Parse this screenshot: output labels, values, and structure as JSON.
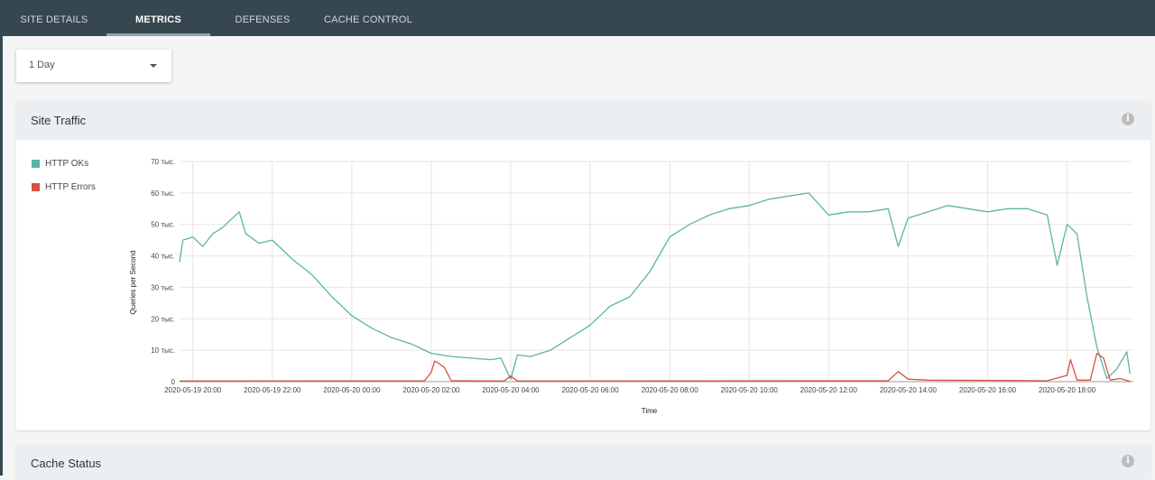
{
  "tabs": [
    {
      "label": "SITE DETAILS"
    },
    {
      "label": "METRICS"
    },
    {
      "label": "DEFENSES"
    },
    {
      "label": "CACHE CONTROL"
    }
  ],
  "active_tab": "METRICS",
  "range_select": {
    "value": "1 Day"
  },
  "cards": {
    "site_traffic": {
      "title": "Site Traffic"
    },
    "cache_status": {
      "title": "Cache Status"
    }
  },
  "info_glyph": "i",
  "colors": {
    "ok": "#5bb5a2",
    "errors": "#d9503f",
    "topbar": "#37474f"
  },
  "chart_data": {
    "type": "line",
    "title": "",
    "xlabel": "Time",
    "ylabel": "Queries per Second",
    "ylim": [
      0,
      70000
    ],
    "y_ticks": [
      "0",
      "10 тыс.",
      "20 тыс.",
      "30 тыс.",
      "40 тыс.",
      "50 тыс.",
      "60 тыс.",
      "70 тыс."
    ],
    "x_ticks": [
      "2020-05-19 20:00",
      "2020-05-19 22:00",
      "2020-05-20 00:00",
      "2020-05-20 02:00",
      "2020-05-20 04:00",
      "2020-05-20 06:00",
      "2020-05-20 08:00",
      "2020-05-20 10:00",
      "2020-05-20 12:00",
      "2020-05-20 14:00",
      "2020-05-20 16:00",
      "2020-05-20 18:00"
    ],
    "legend_position": "left",
    "grid": true,
    "series": [
      {
        "name": "HTTP OKs",
        "color": "#5bb5a2",
        "points": [
          [
            "2020-05-19 19:40",
            38000
          ],
          [
            "2020-05-19 19:45",
            45000
          ],
          [
            "2020-05-19 20:00",
            46000
          ],
          [
            "2020-05-19 20:15",
            43000
          ],
          [
            "2020-05-19 20:30",
            47000
          ],
          [
            "2020-05-19 20:45",
            49000
          ],
          [
            "2020-05-19 21:00",
            52000
          ],
          [
            "2020-05-19 21:10",
            54000
          ],
          [
            "2020-05-19 21:20",
            47000
          ],
          [
            "2020-05-19 21:40",
            44000
          ],
          [
            "2020-05-19 22:00",
            45000
          ],
          [
            "2020-05-19 22:15",
            42000
          ],
          [
            "2020-05-19 22:30",
            39000
          ],
          [
            "2020-05-19 23:00",
            34000
          ],
          [
            "2020-05-19 23:30",
            27000
          ],
          [
            "2020-05-20 00:00",
            21000
          ],
          [
            "2020-05-20 00:30",
            17000
          ],
          [
            "2020-05-20 01:00",
            14000
          ],
          [
            "2020-05-20 01:30",
            12000
          ],
          [
            "2020-05-20 02:00",
            9000
          ],
          [
            "2020-05-20 02:30",
            8000
          ],
          [
            "2020-05-20 03:00",
            7500
          ],
          [
            "2020-05-20 03:30",
            7000
          ],
          [
            "2020-05-20 03:45",
            7500
          ],
          [
            "2020-05-20 04:00",
            800
          ],
          [
            "2020-05-20 04:10",
            8500
          ],
          [
            "2020-05-20 04:30",
            8000
          ],
          [
            "2020-05-20 05:00",
            10000
          ],
          [
            "2020-05-20 05:30",
            14000
          ],
          [
            "2020-05-20 06:00",
            18000
          ],
          [
            "2020-05-20 06:30",
            24000
          ],
          [
            "2020-05-20 07:00",
            27000
          ],
          [
            "2020-05-20 07:30",
            35000
          ],
          [
            "2020-05-20 08:00",
            46000
          ],
          [
            "2020-05-20 08:30",
            50000
          ],
          [
            "2020-05-20 09:00",
            53000
          ],
          [
            "2020-05-20 09:30",
            55000
          ],
          [
            "2020-05-20 10:00",
            56000
          ],
          [
            "2020-05-20 10:30",
            58000
          ],
          [
            "2020-05-20 11:00",
            59000
          ],
          [
            "2020-05-20 11:30",
            60000
          ],
          [
            "2020-05-20 12:00",
            53000
          ],
          [
            "2020-05-20 12:30",
            54000
          ],
          [
            "2020-05-20 13:00",
            54000
          ],
          [
            "2020-05-20 13:30",
            55000
          ],
          [
            "2020-05-20 13:45",
            43000
          ],
          [
            "2020-05-20 14:00",
            52000
          ],
          [
            "2020-05-20 14:30",
            54000
          ],
          [
            "2020-05-20 15:00",
            56000
          ],
          [
            "2020-05-20 15:30",
            55000
          ],
          [
            "2020-05-20 16:00",
            54000
          ],
          [
            "2020-05-20 16:30",
            55000
          ],
          [
            "2020-05-20 17:00",
            55000
          ],
          [
            "2020-05-20 17:30",
            53000
          ],
          [
            "2020-05-20 17:45",
            37000
          ],
          [
            "2020-05-20 18:00",
            50000
          ],
          [
            "2020-05-20 18:15",
            47000
          ],
          [
            "2020-05-20 18:30",
            27000
          ],
          [
            "2020-05-20 18:45",
            11000
          ],
          [
            "2020-05-20 19:00",
            1000
          ],
          [
            "2020-05-20 19:15",
            4000
          ],
          [
            "2020-05-20 19:30",
            9500
          ],
          [
            "2020-05-20 19:35",
            2500
          ]
        ]
      },
      {
        "name": "HTTP Errors",
        "color": "#d9503f",
        "points": [
          [
            "2020-05-19 19:40",
            200
          ],
          [
            "2020-05-20 01:50",
            300
          ],
          [
            "2020-05-20 02:00",
            3000
          ],
          [
            "2020-05-20 02:05",
            6500
          ],
          [
            "2020-05-20 02:10",
            6000
          ],
          [
            "2020-05-20 02:20",
            4500
          ],
          [
            "2020-05-20 02:30",
            300
          ],
          [
            "2020-05-20 03:50",
            200
          ],
          [
            "2020-05-20 04:00",
            1800
          ],
          [
            "2020-05-20 04:10",
            200
          ],
          [
            "2020-05-20 13:30",
            300
          ],
          [
            "2020-05-20 13:45",
            3200
          ],
          [
            "2020-05-20 14:00",
            800
          ],
          [
            "2020-05-20 14:30",
            500
          ],
          [
            "2020-05-20 17:30",
            300
          ],
          [
            "2020-05-20 18:00",
            2000
          ],
          [
            "2020-05-20 18:05",
            7000
          ],
          [
            "2020-05-20 18:15",
            500
          ],
          [
            "2020-05-20 18:35",
            500
          ],
          [
            "2020-05-20 18:45",
            9000
          ],
          [
            "2020-05-20 18:55",
            7500
          ],
          [
            "2020-05-20 19:05",
            500
          ],
          [
            "2020-05-20 19:20",
            1000
          ],
          [
            "2020-05-20 19:35",
            100
          ]
        ]
      }
    ]
  }
}
